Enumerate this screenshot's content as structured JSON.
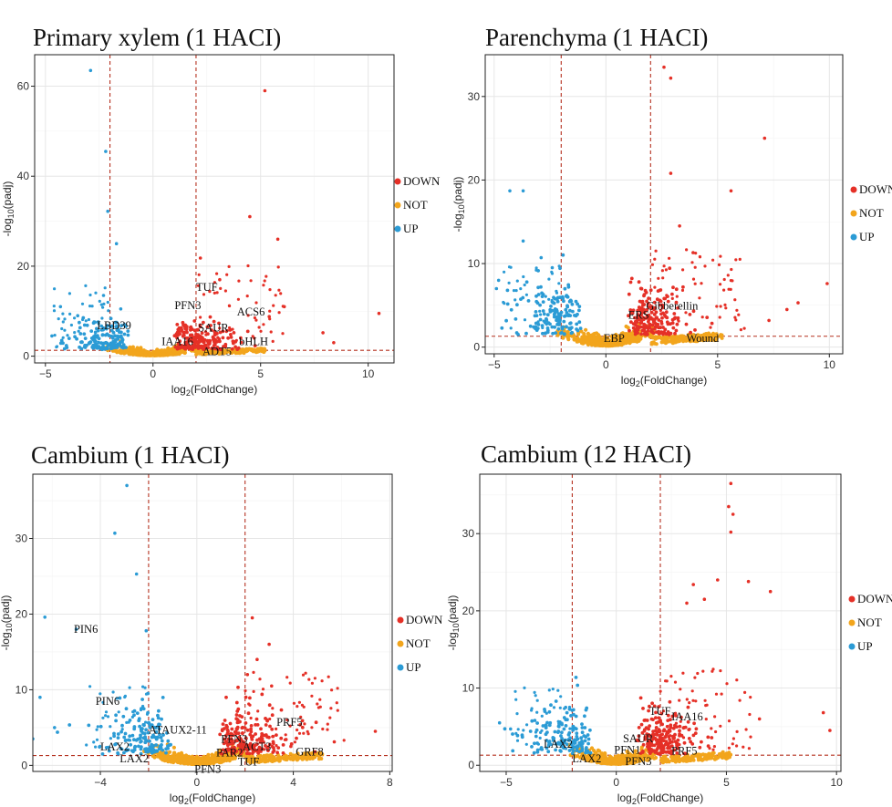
{
  "colors": {
    "DOWN": "#e53027",
    "NOT": "#f2a51c",
    "UP": "#2b9bd5",
    "threshold": "#b5301f"
  },
  "chart_data": [
    {
      "type": "scatter",
      "title": "Primary xylem (1 HACI)",
      "xlabel": "log2(FoldChange)",
      "ylabel": "-log10(padj)",
      "xlim": [
        -5.5,
        11.2
      ],
      "ylim": [
        -1.5,
        67
      ],
      "xticks": [
        -5,
        0,
        5,
        10
      ],
      "yticks": [
        0,
        20,
        40,
        60
      ],
      "thresholds": {
        "x": [
          -2,
          2
        ],
        "y": 1.3
      },
      "legend": [
        "DOWN",
        "NOT",
        "UP"
      ],
      "legend_position": "right",
      "labels": [
        {
          "text": "LBD39",
          "x": -2.6,
          "y": 6.0
        },
        {
          "text": "TUF",
          "x": 2.0,
          "y": 14.5
        },
        {
          "text": "PFN3",
          "x": 1.0,
          "y": 10.5
        },
        {
          "text": "ACS6",
          "x": 3.9,
          "y": 9.0
        },
        {
          "text": "SAUR",
          "x": 2.1,
          "y": 5.5
        },
        {
          "text": "IAA16",
          "x": 0.4,
          "y": 2.5
        },
        {
          "text": "bHLH",
          "x": 4.0,
          "y": 2.5
        },
        {
          "text": "ADT5",
          "x": 2.3,
          "y": 0.2
        }
      ],
      "scatter_seed": 11,
      "up_points": [
        [
          -2.9,
          63.5
        ],
        [
          -2.2,
          45.5
        ],
        [
          -2.1,
          32.2
        ],
        [
          -1.7,
          25.0
        ],
        [
          -4.7,
          4.5
        ],
        [
          -4.3,
          11.0
        ],
        [
          -3.5,
          9.0
        ],
        [
          -1.5,
          10.5
        ],
        [
          -2.3,
          13.5
        ]
      ],
      "down_points": [
        [
          5.2,
          59.0
        ],
        [
          4.5,
          31.0
        ],
        [
          5.8,
          26.0
        ],
        [
          10.5,
          9.5
        ],
        [
          7.9,
          5.2
        ],
        [
          2.2,
          21.8
        ],
        [
          3.1,
          17.0
        ],
        [
          6.1,
          11.0
        ],
        [
          5.4,
          8.8
        ],
        [
          8.4,
          3.0
        ]
      ]
    },
    {
      "type": "scatter",
      "title": "Parenchyma (1 HACI)",
      "xlabel": "log2(FoldChange)",
      "ylabel": "-log10(padj)",
      "xlim": [
        -5.4,
        10.6
      ],
      "ylim": [
        -0.8,
        35
      ],
      "xticks": [
        -5,
        0,
        5,
        10
      ],
      "yticks": [
        0,
        10,
        20,
        30
      ],
      "thresholds": {
        "x": [
          -2,
          2
        ],
        "y": 1.3
      },
      "legend": [
        "DOWN",
        "NOT",
        "UP"
      ],
      "legend_position": "right",
      "labels": [
        {
          "text": "Gibberellin",
          "x": 1.8,
          "y": 4.5
        },
        {
          "text": "ERS",
          "x": 1.0,
          "y": 3.4
        },
        {
          "text": "Wound",
          "x": 3.6,
          "y": 0.6
        },
        {
          "text": "EBP",
          "x": -0.1,
          "y": 0.6
        }
      ],
      "scatter_seed": 23,
      "up_points": [
        [
          -4.3,
          18.7
        ],
        [
          -3.7,
          18.7
        ],
        [
          -3.7,
          12.7
        ],
        [
          -2.9,
          10.7
        ],
        [
          -2.4,
          9.5
        ],
        [
          -4.8,
          8.0
        ],
        [
          -4.9,
          7.0
        ],
        [
          -2.8,
          6.3
        ]
      ],
      "down_points": [
        [
          2.6,
          33.5
        ],
        [
          2.9,
          32.2
        ],
        [
          7.1,
          25.0
        ],
        [
          5.6,
          18.7
        ],
        [
          2.9,
          20.8
        ],
        [
          9.9,
          7.6
        ],
        [
          8.6,
          5.3
        ],
        [
          3.9,
          11.3
        ],
        [
          7.3,
          3.2
        ],
        [
          8.1,
          4.5
        ],
        [
          3.3,
          14.5
        ]
      ]
    },
    {
      "type": "scatter",
      "title": "Cambium (1 HACI)",
      "xlabel": "log2(FoldChange)",
      "ylabel": "-log10(padj)",
      "xlim": [
        -6.8,
        8.1
      ],
      "ylim": [
        -0.8,
        38.5
      ],
      "xticks": [
        -4,
        0,
        4,
        8
      ],
      "yticks": [
        0,
        10,
        20,
        30
      ],
      "thresholds": {
        "x": [
          -2,
          2
        ],
        "y": 1.3
      },
      "legend": [
        "DOWN",
        "NOT",
        "UP"
      ],
      "legend_position": "right",
      "labels": [
        {
          "text": "PIN6",
          "x": -5.1,
          "y": 17.5
        },
        {
          "text": "PIN6",
          "x": -4.2,
          "y": 8.0
        },
        {
          "text": "ATAUX2-11",
          "x": -2.0,
          "y": 4.2
        },
        {
          "text": "LAX2",
          "x": -4.0,
          "y": 2.0
        },
        {
          "text": "LAX2",
          "x": -3.2,
          "y": 0.4
        },
        {
          "text": "PFN3",
          "x": 1.0,
          "y": 3.0
        },
        {
          "text": "PAR2",
          "x": 0.8,
          "y": 1.2
        },
        {
          "text": "ACT3",
          "x": 1.9,
          "y": 2.0
        },
        {
          "text": "PFN3",
          "x": -0.1,
          "y": -1.0
        },
        {
          "text": "TUF",
          "x": 1.7,
          "y": 0.0
        },
        {
          "text": "PRF5",
          "x": 3.3,
          "y": 5.2
        },
        {
          "text": "GRF8",
          "x": 4.1,
          "y": 1.3
        }
      ],
      "scatter_seed": 37,
      "up_points": [
        [
          -2.9,
          37.0
        ],
        [
          -3.4,
          30.7
        ],
        [
          -2.5,
          25.3
        ],
        [
          -6.3,
          19.6
        ],
        [
          -5.0,
          18.0
        ],
        [
          -2.1,
          17.8
        ],
        [
          -6.5,
          9.0
        ],
        [
          -6.8,
          3.5
        ],
        [
          -5.9,
          5.0
        ]
      ],
      "down_points": [
        [
          2.3,
          19.5
        ],
        [
          3.0,
          16.0
        ],
        [
          2.5,
          14.0
        ],
        [
          3.1,
          10.5
        ],
        [
          7.4,
          4.5
        ],
        [
          5.7,
          3.1
        ],
        [
          3.9,
          2.5
        ],
        [
          4.9,
          1.8
        ],
        [
          2.1,
          12.0
        ]
      ]
    },
    {
      "type": "scatter",
      "title": "Cambium (12 HACI)",
      "xlabel": "log2(FoldChange)",
      "ylabel": "-log10(padj)",
      "xlim": [
        -6.2,
        10.2
      ],
      "ylim": [
        -0.8,
        37.7
      ],
      "xticks": [
        -5,
        0,
        5,
        10
      ],
      "yticks": [
        0,
        10,
        20,
        30
      ],
      "thresholds": {
        "x": [
          -2,
          2
        ],
        "y": 1.3
      },
      "legend": [
        "DOWN",
        "NOT",
        "UP"
      ],
      "legend_position": "right",
      "labels": [
        {
          "text": "TUF",
          "x": 1.5,
          "y": 6.5
        },
        {
          "text": "IAA16",
          "x": 2.5,
          "y": 5.8
        },
        {
          "text": "SAUR",
          "x": 0.3,
          "y": 3.0
        },
        {
          "text": "PFN1",
          "x": -0.1,
          "y": 1.5
        },
        {
          "text": "PRF5",
          "x": 2.5,
          "y": 1.4
        },
        {
          "text": "LAX2",
          "x": -3.3,
          "y": 2.3
        },
        {
          "text": "LAX2",
          "x": -2.0,
          "y": 0.4
        },
        {
          "text": "PFN3",
          "x": 0.4,
          "y": 0.0
        }
      ],
      "scatter_seed": 53,
      "up_points": [
        [
          -5.3,
          5.5
        ],
        [
          -3.7,
          5.8
        ],
        [
          -3.0,
          5.5
        ],
        [
          -2.3,
          7.5
        ],
        [
          -2.6,
          5.0
        ],
        [
          -4.8,
          4.7
        ]
      ],
      "down_points": [
        [
          5.2,
          36.5
        ],
        [
          5.1,
          33.5
        ],
        [
          5.3,
          32.5
        ],
        [
          5.2,
          30.2
        ],
        [
          4.6,
          24.0
        ],
        [
          6.0,
          23.8
        ],
        [
          3.5,
          23.4
        ],
        [
          4.0,
          21.5
        ],
        [
          7.0,
          22.5
        ],
        [
          9.4,
          6.8
        ],
        [
          9.7,
          4.5
        ],
        [
          6.5,
          6.0
        ],
        [
          3.2,
          21.0
        ]
      ]
    }
  ]
}
